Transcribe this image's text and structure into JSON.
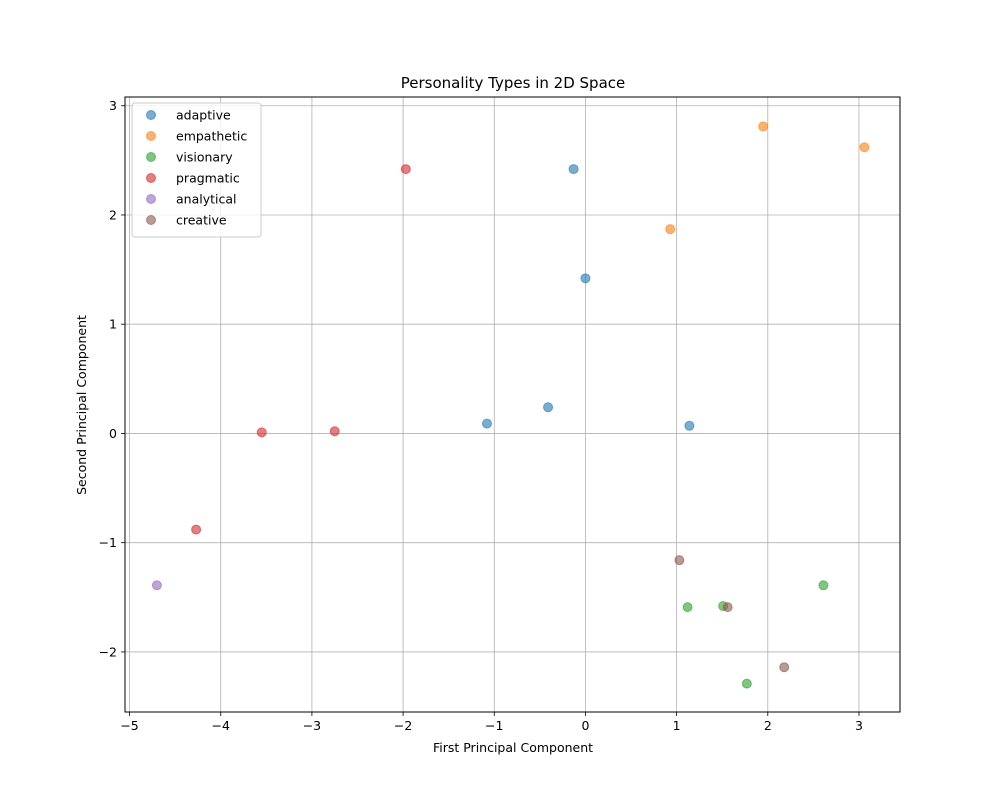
{
  "chart_data": {
    "type": "scatter",
    "title": "Personality Types in 2D Space",
    "xlabel": "First Principal Component",
    "ylabel": "Second Principal Component",
    "xlim": [
      -5.05,
      3.45
    ],
    "ylim": [
      -2.55,
      3.08
    ],
    "xticks": [
      -5,
      -4,
      -3,
      -2,
      -1,
      0,
      1,
      2,
      3
    ],
    "yticks": [
      -2,
      -1,
      0,
      1,
      2,
      3
    ],
    "xtick_labels": [
      "−5",
      "−4",
      "−3",
      "−2",
      "−1",
      "0",
      "1",
      "2",
      "3"
    ],
    "ytick_labels": [
      "−2",
      "−1",
      "0",
      "1",
      "2",
      "3"
    ],
    "grid": true,
    "legend_position": "top-left",
    "series": [
      {
        "name": "adaptive",
        "color": "#1f77b4",
        "points": [
          [
            -0.13,
            2.42
          ],
          [
            0.0,
            1.42
          ],
          [
            -0.41,
            0.24
          ],
          [
            -1.08,
            0.09
          ],
          [
            1.14,
            0.07
          ]
        ]
      },
      {
        "name": "empathetic",
        "color": "#ff7f0e",
        "points": [
          [
            1.95,
            2.81
          ],
          [
            3.06,
            2.62
          ],
          [
            0.93,
            1.87
          ]
        ]
      },
      {
        "name": "visionary",
        "color": "#2ca02c",
        "points": [
          [
            2.61,
            -1.39
          ],
          [
            1.12,
            -1.59
          ],
          [
            1.51,
            -1.58
          ],
          [
            1.77,
            -2.29
          ]
        ]
      },
      {
        "name": "pragmatic",
        "color": "#d62728",
        "points": [
          [
            -1.97,
            2.42
          ],
          [
            -3.55,
            0.01
          ],
          [
            -2.75,
            0.02
          ],
          [
            -4.27,
            -0.88
          ]
        ]
      },
      {
        "name": "analytical",
        "color": "#9467bd",
        "points": [
          [
            -4.7,
            -1.39
          ]
        ]
      },
      {
        "name": "creative",
        "color": "#8c564b",
        "points": [
          [
            1.03,
            -1.16
          ],
          [
            1.56,
            -1.59
          ],
          [
            2.18,
            -2.14
          ]
        ]
      }
    ]
  }
}
